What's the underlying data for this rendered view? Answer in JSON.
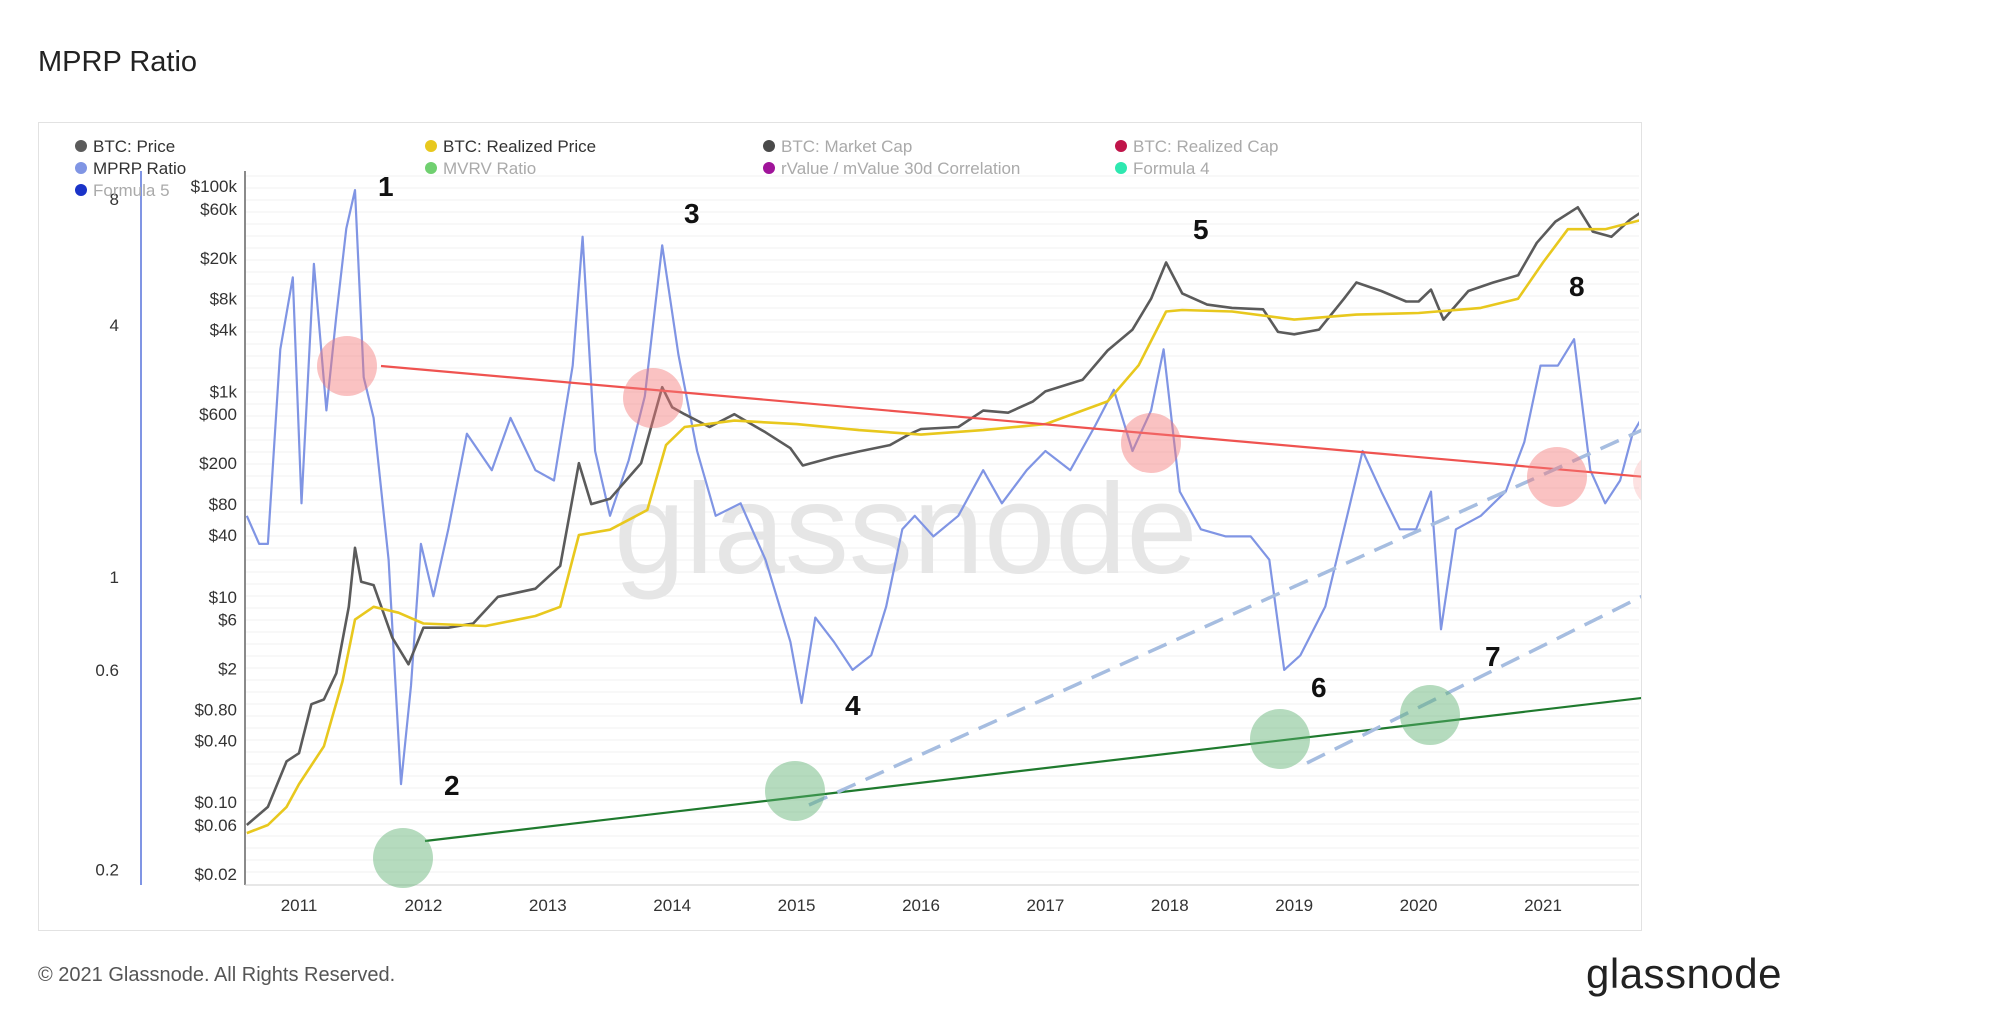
{
  "title": "MPRP Ratio",
  "footer": "© 2021 Glassnode. All Rights Reserved.",
  "brand": "glassnode",
  "watermark": "glassnode",
  "chart_data": {
    "type": "line",
    "legend": [
      {
        "name": "BTC: Price",
        "color": "#5b5b5b",
        "active": true
      },
      {
        "name": "BTC: Realized Price",
        "color": "#e8c81e",
        "active": true
      },
      {
        "name": "BTC: Market Cap",
        "color": "#4a4a4a",
        "active": false
      },
      {
        "name": "BTC: Realized Cap",
        "color": "#c0154a",
        "active": false
      },
      {
        "name": "MPRP Ratio",
        "color": "#8095e4",
        "active": true
      },
      {
        "name": "MVRV Ratio",
        "color": "#70d070",
        "active": false
      },
      {
        "name": "rValue / mValue 30d Correlation",
        "color": "#a0149a",
        "active": false
      },
      {
        "name": "Formula 4",
        "color": "#2ee8b0",
        "active": false
      },
      {
        "name": "Formula 5",
        "color": "#1a33c8",
        "active": false
      }
    ],
    "x_ticks": [
      "2011",
      "2012",
      "2013",
      "2014",
      "2015",
      "2016",
      "2017",
      "2018",
      "2019",
      "2020",
      "2021"
    ],
    "price_axis_ticks": [
      "$100k",
      "$60k",
      "$20k",
      "$8k",
      "$4k",
      "$1k",
      "$600",
      "$200",
      "$80",
      "$40",
      "$10",
      "$6",
      "$2",
      "$0.80",
      "$0.40",
      "$0.10",
      "$0.06",
      "$0.02"
    ],
    "ratio_axis_ticks": [
      "8",
      "4",
      "1",
      "0.6",
      "0.2"
    ],
    "price_scale": "log",
    "ratio_scale": "log",
    "series": [
      {
        "name": "BTC: Price",
        "points": [
          [
            2010.58,
            0.06
          ],
          [
            2010.75,
            0.09
          ],
          [
            2010.9,
            0.25
          ],
          [
            2011.0,
            0.3
          ],
          [
            2011.1,
            0.9
          ],
          [
            2011.2,
            1.0
          ],
          [
            2011.3,
            1.8
          ],
          [
            2011.4,
            8
          ],
          [
            2011.45,
            30
          ],
          [
            2011.5,
            14
          ],
          [
            2011.6,
            13
          ],
          [
            2011.75,
            4
          ],
          [
            2011.88,
            2.2
          ],
          [
            2012.0,
            5
          ],
          [
            2012.2,
            5
          ],
          [
            2012.4,
            5.5
          ],
          [
            2012.6,
            10
          ],
          [
            2012.9,
            12
          ],
          [
            2013.1,
            20
          ],
          [
            2013.25,
            200
          ],
          [
            2013.35,
            80
          ],
          [
            2013.5,
            90
          ],
          [
            2013.75,
            200
          ],
          [
            2013.92,
            1100
          ],
          [
            2014.0,
            700
          ],
          [
            2014.1,
            600
          ],
          [
            2014.3,
            450
          ],
          [
            2014.5,
            600
          ],
          [
            2014.75,
            400
          ],
          [
            2014.95,
            280
          ],
          [
            2015.05,
            190
          ],
          [
            2015.3,
            230
          ],
          [
            2015.5,
            260
          ],
          [
            2015.75,
            300
          ],
          [
            2015.9,
            380
          ],
          [
            2016.0,
            430
          ],
          [
            2016.3,
            450
          ],
          [
            2016.5,
            650
          ],
          [
            2016.7,
            620
          ],
          [
            2016.9,
            800
          ],
          [
            2017.0,
            1000
          ],
          [
            2017.3,
            1300
          ],
          [
            2017.5,
            2500
          ],
          [
            2017.7,
            4000
          ],
          [
            2017.85,
            8000
          ],
          [
            2017.97,
            18000
          ],
          [
            2018.1,
            9000
          ],
          [
            2018.3,
            7000
          ],
          [
            2018.5,
            6500
          ],
          [
            2018.75,
            6300
          ],
          [
            2018.87,
            3800
          ],
          [
            2019.0,
            3600
          ],
          [
            2019.2,
            4000
          ],
          [
            2019.4,
            8000
          ],
          [
            2019.5,
            11500
          ],
          [
            2019.7,
            9500
          ],
          [
            2019.9,
            7500
          ],
          [
            2020.0,
            7500
          ],
          [
            2020.1,
            9800
          ],
          [
            2020.2,
            5000
          ],
          [
            2020.4,
            9500
          ],
          [
            2020.6,
            11500
          ],
          [
            2020.8,
            13500
          ],
          [
            2020.95,
            28000
          ],
          [
            2021.1,
            45000
          ],
          [
            2021.28,
            62000
          ],
          [
            2021.4,
            36000
          ],
          [
            2021.55,
            32000
          ],
          [
            2021.7,
            47000
          ],
          [
            2021.83,
            60000
          ]
        ]
      },
      {
        "name": "BTC: Realized Price",
        "points": [
          [
            2010.58,
            0.05
          ],
          [
            2010.75,
            0.06
          ],
          [
            2010.9,
            0.09
          ],
          [
            2011.0,
            0.15
          ],
          [
            2011.2,
            0.35
          ],
          [
            2011.35,
            1.5
          ],
          [
            2011.45,
            6
          ],
          [
            2011.6,
            8
          ],
          [
            2011.8,
            7
          ],
          [
            2012.0,
            5.5
          ],
          [
            2012.5,
            5.2
          ],
          [
            2012.9,
            6.5
          ],
          [
            2013.1,
            8
          ],
          [
            2013.25,
            40
          ],
          [
            2013.5,
            45
          ],
          [
            2013.8,
            70
          ],
          [
            2013.95,
            300
          ],
          [
            2014.1,
            450
          ],
          [
            2014.5,
            520
          ],
          [
            2015.0,
            480
          ],
          [
            2015.5,
            420
          ],
          [
            2016.0,
            380
          ],
          [
            2016.5,
            420
          ],
          [
            2017.0,
            480
          ],
          [
            2017.5,
            800
          ],
          [
            2017.75,
            1800
          ],
          [
            2017.97,
            6000
          ],
          [
            2018.1,
            6200
          ],
          [
            2018.5,
            6000
          ],
          [
            2019.0,
            5000
          ],
          [
            2019.5,
            5600
          ],
          [
            2020.0,
            5800
          ],
          [
            2020.5,
            6500
          ],
          [
            2020.8,
            8000
          ],
          [
            2021.0,
            18000
          ],
          [
            2021.2,
            38000
          ],
          [
            2021.5,
            38000
          ],
          [
            2021.83,
            48000
          ]
        ]
      },
      {
        "name": "MPRP Ratio",
        "points": [
          [
            2010.58,
            1.4
          ],
          [
            2010.68,
            1.2
          ],
          [
            2010.75,
            1.2
          ],
          [
            2010.85,
            3.5
          ],
          [
            2010.95,
            5.2
          ],
          [
            2011.02,
            1.5
          ],
          [
            2011.12,
            5.6
          ],
          [
            2011.22,
            2.5
          ],
          [
            2011.3,
            4.2
          ],
          [
            2011.38,
            6.8
          ],
          [
            2011.45,
            8.4
          ],
          [
            2011.52,
            3
          ],
          [
            2011.6,
            2.4
          ],
          [
            2011.72,
            1.1
          ],
          [
            2011.82,
            0.32
          ],
          [
            2011.9,
            0.55
          ],
          [
            2011.98,
            1.2
          ],
          [
            2012.08,
            0.9
          ],
          [
            2012.2,
            1.3
          ],
          [
            2012.35,
            2.2
          ],
          [
            2012.55,
            1.8
          ],
          [
            2012.7,
            2.4
          ],
          [
            2012.9,
            1.8
          ],
          [
            2013.05,
            1.7
          ],
          [
            2013.2,
            3.2
          ],
          [
            2013.28,
            6.5
          ],
          [
            2013.38,
            2
          ],
          [
            2013.5,
            1.4
          ],
          [
            2013.65,
            1.9
          ],
          [
            2013.78,
            2.7
          ],
          [
            2013.92,
            6.2
          ],
          [
            2014.05,
            3.4
          ],
          [
            2014.2,
            2
          ],
          [
            2014.35,
            1.4
          ],
          [
            2014.55,
            1.5
          ],
          [
            2014.75,
            1.1
          ],
          [
            2014.95,
            0.7
          ],
          [
            2015.04,
            0.5
          ],
          [
            2015.15,
            0.8
          ],
          [
            2015.3,
            0.7
          ],
          [
            2015.45,
            0.6
          ],
          [
            2015.6,
            0.65
          ],
          [
            2015.72,
            0.85
          ],
          [
            2015.85,
            1.3
          ],
          [
            2015.95,
            1.4
          ],
          [
            2016.1,
            1.25
          ],
          [
            2016.3,
            1.4
          ],
          [
            2016.5,
            1.8
          ],
          [
            2016.65,
            1.5
          ],
          [
            2016.85,
            1.8
          ],
          [
            2017.0,
            2
          ],
          [
            2017.2,
            1.8
          ],
          [
            2017.4,
            2.3
          ],
          [
            2017.55,
            2.8
          ],
          [
            2017.7,
            2
          ],
          [
            2017.85,
            2.5
          ],
          [
            2017.95,
            3.5
          ],
          [
            2018.08,
            1.6
          ],
          [
            2018.25,
            1.3
          ],
          [
            2018.45,
            1.25
          ],
          [
            2018.65,
            1.25
          ],
          [
            2018.8,
            1.1
          ],
          [
            2018.92,
            0.6
          ],
          [
            2019.05,
            0.65
          ],
          [
            2019.25,
            0.85
          ],
          [
            2019.45,
            1.5
          ],
          [
            2019.55,
            2
          ],
          [
            2019.7,
            1.6
          ],
          [
            2019.85,
            1.3
          ],
          [
            2019.98,
            1.3
          ],
          [
            2020.1,
            1.6
          ],
          [
            2020.18,
            0.75
          ],
          [
            2020.3,
            1.3
          ],
          [
            2020.5,
            1.4
          ],
          [
            2020.7,
            1.6
          ],
          [
            2020.85,
            2.1
          ],
          [
            2020.98,
            3.2
          ],
          [
            2021.12,
            3.2
          ],
          [
            2021.25,
            3.7
          ],
          [
            2021.38,
            1.8
          ],
          [
            2021.5,
            1.5
          ],
          [
            2021.62,
            1.7
          ],
          [
            2021.72,
            2.2
          ],
          [
            2021.83,
            2.5
          ]
        ]
      }
    ],
    "annotations": [
      "1",
      "2",
      "3",
      "4",
      "5",
      "6",
      "7",
      "8",
      "?",
      "?"
    ]
  }
}
